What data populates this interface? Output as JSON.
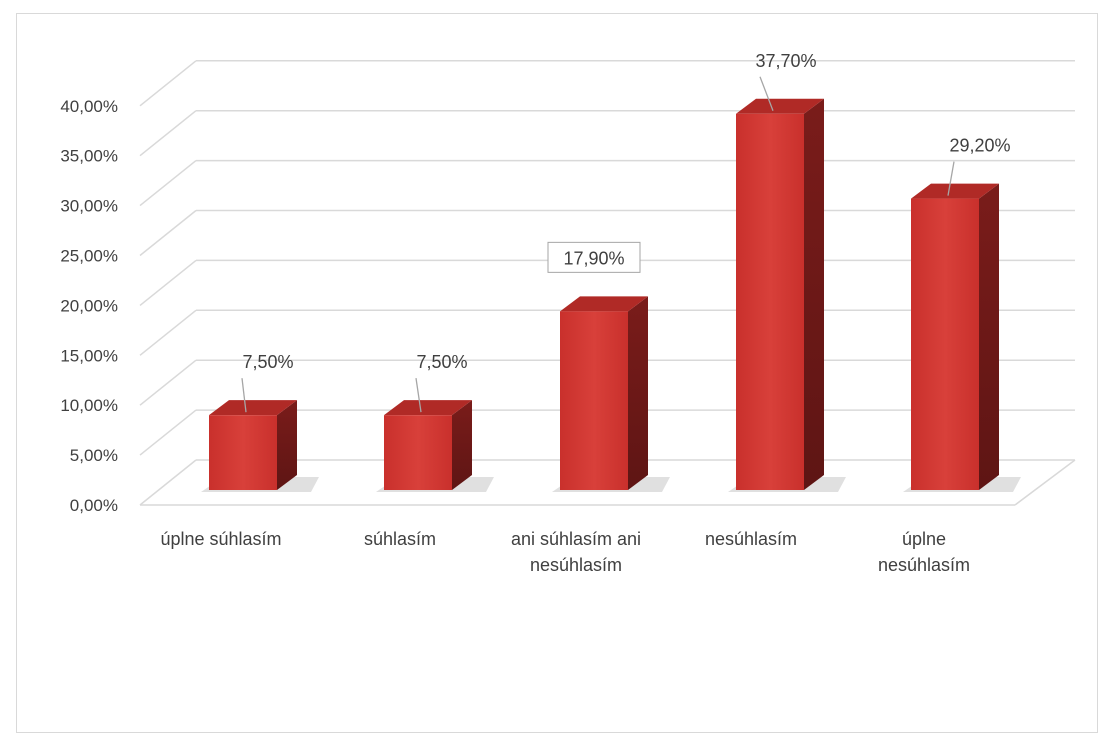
{
  "chart_data": {
    "type": "bar",
    "style": "3d-column",
    "categories": [
      "úplne súhlasím",
      "súhlasím",
      "ani súhlasím ani nesúhlasím",
      "nesúhlasím",
      "úplne nesúhlasím"
    ],
    "category_lines": [
      [
        "úplne súhlasím"
      ],
      [
        "súhlasím"
      ],
      [
        "ani súhlasím ani",
        "nesúhlasím"
      ],
      [
        "nesúhlasím"
      ],
      [
        "úplne",
        "nesúhlasím"
      ]
    ],
    "values": [
      7.5,
      7.5,
      17.9,
      37.7,
      29.2
    ],
    "data_labels": [
      "7,50%",
      "7,50%",
      "17,90%",
      "37,70%",
      "29,20%"
    ],
    "yticks": [
      "0,00%",
      "5,00%",
      "10,00%",
      "15,00%",
      "20,00%",
      "25,00%",
      "30,00%",
      "35,00%",
      "40,00%"
    ],
    "ylim": [
      0,
      40
    ],
    "grid": true,
    "legend": "none",
    "title": "",
    "xlabel": "",
    "ylabel": "",
    "colors": {
      "bar_front": "#c9302c",
      "bar_front_light": "#d8403a",
      "bar_top": "#b02a26",
      "bar_side": "#7a1c1a",
      "grid": "#d9d9d9",
      "label_box_border": "#a6a6a6",
      "text": "#404040"
    }
  }
}
